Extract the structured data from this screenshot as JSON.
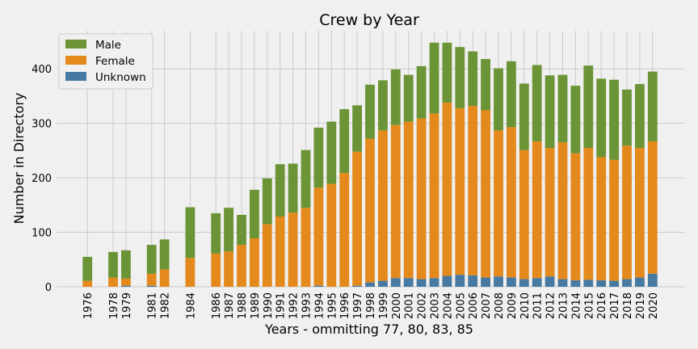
{
  "chart_data": {
    "type": "bar",
    "stacked": true,
    "title": "Crew by Year",
    "xlabel": "Years - ommitting 77, 80, 83, 85",
    "ylabel": "Number in Directory",
    "ylim": [
      0,
      470
    ],
    "yticks": [
      0,
      100,
      200,
      300,
      400
    ],
    "grid": true,
    "legend_position": "top-left",
    "categories": [
      "1976",
      "1978",
      "1979",
      "1981",
      "1982",
      "1984",
      "1986",
      "1987",
      "1988",
      "1989",
      "1990",
      "1991",
      "1992",
      "1993",
      "1994",
      "1995",
      "1996",
      "1997",
      "1998",
      "1999",
      "2000",
      "2001",
      "2002",
      "2003",
      "2004",
      "2005",
      "2006",
      "2007",
      "2008",
      "2009",
      "2010",
      "2011",
      "2012",
      "2013",
      "2014",
      "2015",
      "2016",
      "2017",
      "2018",
      "2019",
      "2020"
    ],
    "series": [
      {
        "name": "Unknown",
        "color": "#467aa3",
        "values": [
          0,
          0,
          2,
          2,
          0,
          0,
          0,
          0,
          0,
          0,
          0,
          0,
          0,
          0,
          2,
          0,
          0,
          2,
          8,
          11,
          16,
          16,
          14,
          16,
          20,
          22,
          21,
          17,
          19,
          17,
          14,
          16,
          19,
          14,
          12,
          13,
          12,
          11,
          14,
          17,
          24
        ]
      },
      {
        "name": "Female",
        "color": "#e4891c",
        "values": [
          11,
          17,
          13,
          22,
          32,
          53,
          61,
          65,
          77,
          89,
          115,
          129,
          136,
          145,
          180,
          189,
          209,
          246,
          264,
          276,
          281,
          287,
          295,
          302,
          318,
          306,
          311,
          307,
          268,
          276,
          237,
          251,
          236,
          251,
          233,
          242,
          226,
          222,
          245,
          238,
          243
        ]
      },
      {
        "name": "Male",
        "color": "#6a9435",
        "values": [
          44,
          47,
          52,
          53,
          55,
          93,
          74,
          80,
          55,
          89,
          84,
          96,
          90,
          106,
          110,
          114,
          117,
          85,
          99,
          92,
          102,
          86,
          96,
          130,
          110,
          112,
          100,
          94,
          114,
          121,
          122,
          140,
          133,
          124,
          124,
          151,
          144,
          147,
          103,
          117,
          128
        ]
      }
    ]
  }
}
